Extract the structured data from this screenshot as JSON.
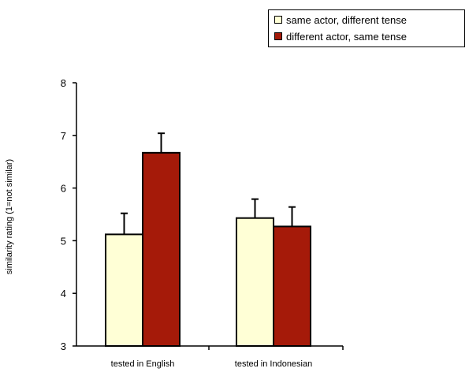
{
  "chart_data": {
    "type": "bar",
    "categories": [
      "tested in English",
      "tested in Indonesian"
    ],
    "series": [
      {
        "name": "same actor, different tense",
        "values": [
          5.12,
          5.43
        ],
        "errors": [
          0.4,
          0.36
        ],
        "color": "#ffffd6"
      },
      {
        "name": "different actor, same tense",
        "values": [
          6.67,
          5.27
        ],
        "errors": [
          0.37,
          0.37
        ],
        "color": "#a51a09"
      }
    ],
    "xlabel": "",
    "ylabel": "similarity rating (1=not similar)",
    "ylim": [
      3,
      8
    ],
    "yticks": [
      "3",
      "4",
      "5",
      "6",
      "7",
      "8"
    ],
    "grid": false,
    "legend_position": "top-right",
    "error_bars": "upper only"
  }
}
